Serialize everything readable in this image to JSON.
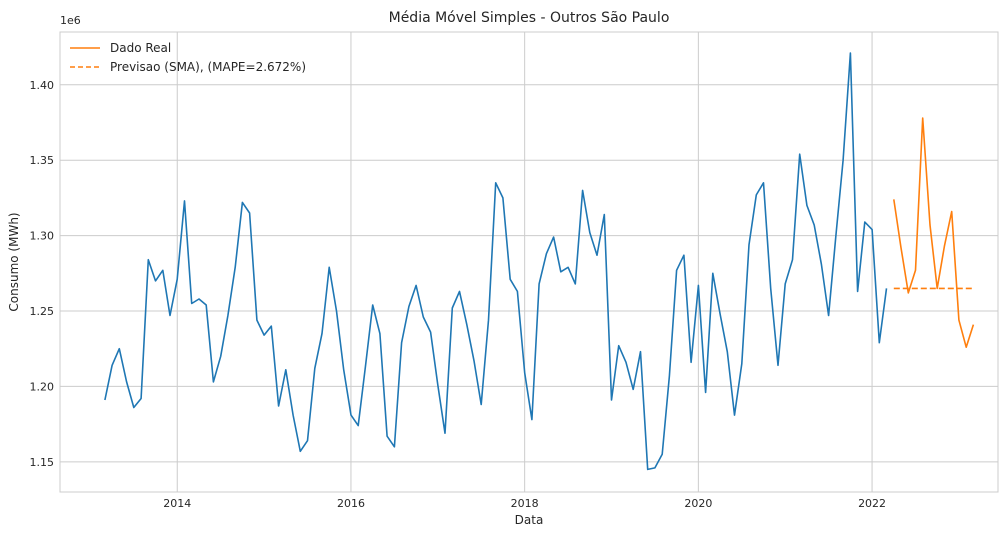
{
  "chart_data": {
    "type": "line",
    "title": "Média Móvel Simples - Outros São Paulo",
    "xlabel": "Data",
    "ylabel": "Consumo (MWh)",
    "y_offset_label": "1e6",
    "x_ticks": [
      "2014",
      "2016",
      "2018",
      "2020",
      "2022"
    ],
    "y_ticks": [
      "1.15",
      "1.20",
      "1.25",
      "1.30",
      "1.35",
      "1.40"
    ],
    "ylim": [
      1.13,
      1.435
    ],
    "grid": true,
    "legend_position": "top-left",
    "colors": {
      "history": "#1f77b4",
      "actual": "#ff7f0e",
      "forecast": "#ff7f0e"
    },
    "series": [
      {
        "name": "",
        "role": "history",
        "x": [
          "2013-03",
          "2013-04",
          "2013-05",
          "2013-06",
          "2013-07",
          "2013-08",
          "2013-09",
          "2013-10",
          "2013-11",
          "2013-12",
          "2014-01",
          "2014-02",
          "2014-03",
          "2014-04",
          "2014-05",
          "2014-06",
          "2014-07",
          "2014-08",
          "2014-09",
          "2014-10",
          "2014-11",
          "2014-12",
          "2015-01",
          "2015-02",
          "2015-03",
          "2015-04",
          "2015-05",
          "2015-06",
          "2015-07",
          "2015-08",
          "2015-09",
          "2015-10",
          "2015-11",
          "2015-12",
          "2016-01",
          "2016-02",
          "2016-03",
          "2016-04",
          "2016-05",
          "2016-06",
          "2016-07",
          "2016-08",
          "2016-09",
          "2016-10",
          "2016-11",
          "2016-12",
          "2017-01",
          "2017-02",
          "2017-03",
          "2017-04",
          "2017-05",
          "2017-06",
          "2017-07",
          "2017-08",
          "2017-09",
          "2017-10",
          "2017-11",
          "2017-12",
          "2018-01",
          "2018-02",
          "2018-03",
          "2018-04",
          "2018-05",
          "2018-06",
          "2018-07",
          "2018-08",
          "2018-09",
          "2018-10",
          "2018-11",
          "2018-12",
          "2019-01",
          "2019-02",
          "2019-03",
          "2019-04",
          "2019-05",
          "2019-06",
          "2019-07",
          "2019-08",
          "2019-09",
          "2019-10",
          "2019-11",
          "2019-12",
          "2020-01",
          "2020-02",
          "2020-03",
          "2020-04",
          "2020-05",
          "2020-06",
          "2020-07",
          "2020-08",
          "2020-09",
          "2020-10",
          "2020-11",
          "2020-12",
          "2021-01",
          "2021-02",
          "2021-03",
          "2021-04",
          "2021-05",
          "2021-06",
          "2021-07",
          "2021-08",
          "2021-09",
          "2021-10",
          "2021-11",
          "2021-12",
          "2022-01",
          "2022-02",
          "2022-03"
        ],
        "values": [
          1.191,
          1.214,
          1.225,
          1.203,
          1.186,
          1.192,
          1.284,
          1.27,
          1.277,
          1.247,
          1.271,
          1.323,
          1.255,
          1.258,
          1.254,
          1.203,
          1.22,
          1.247,
          1.279,
          1.322,
          1.315,
          1.244,
          1.234,
          1.24,
          1.187,
          1.211,
          1.181,
          1.157,
          1.164,
          1.212,
          1.235,
          1.279,
          1.25,
          1.211,
          1.181,
          1.174,
          1.213,
          1.254,
          1.235,
          1.167,
          1.16,
          1.229,
          1.253,
          1.267,
          1.246,
          1.236,
          1.201,
          1.169,
          1.252,
          1.263,
          1.241,
          1.217,
          1.188,
          1.244,
          1.335,
          1.325,
          1.271,
          1.263,
          1.209,
          1.178,
          1.268,
          1.288,
          1.299,
          1.276,
          1.279,
          1.268,
          1.33,
          1.302,
          1.287,
          1.314,
          1.191,
          1.227,
          1.216,
          1.198,
          1.223,
          1.145,
          1.146,
          1.155,
          1.207,
          1.277,
          1.287,
          1.216,
          1.267,
          1.196,
          1.275,
          1.248,
          1.223,
          1.181,
          1.215,
          1.294,
          1.327,
          1.335,
          1.265,
          1.214,
          1.268,
          1.284,
          1.354,
          1.32,
          1.307,
          1.281,
          1.247,
          1.3,
          1.35,
          1.421,
          1.263,
          1.309,
          1.304,
          1.229,
          1.265
        ]
      },
      {
        "name": "Dado Real",
        "role": "actual",
        "x": [
          "2022-04",
          "2022-05",
          "2022-06",
          "2022-07",
          "2022-08",
          "2022-09",
          "2022-10",
          "2022-11",
          "2022-12",
          "2023-01",
          "2023-02",
          "2023-03"
        ],
        "values": [
          1.324,
          1.292,
          1.262,
          1.277,
          1.378,
          1.307,
          1.265,
          1.293,
          1.316,
          1.244,
          1.226,
          1.241
        ]
      },
      {
        "name": "Previsao (SMA), (MAPE=2.672%)",
        "role": "forecast",
        "dashed": true,
        "x": [
          "2022-04",
          "2022-05",
          "2022-06",
          "2022-07",
          "2022-08",
          "2022-09",
          "2022-10",
          "2022-11",
          "2022-12",
          "2023-01",
          "2023-02",
          "2023-03"
        ],
        "values": [
          1.265,
          1.265,
          1.265,
          1.265,
          1.265,
          1.265,
          1.265,
          1.265,
          1.265,
          1.265,
          1.265,
          1.265
        ]
      }
    ]
  }
}
